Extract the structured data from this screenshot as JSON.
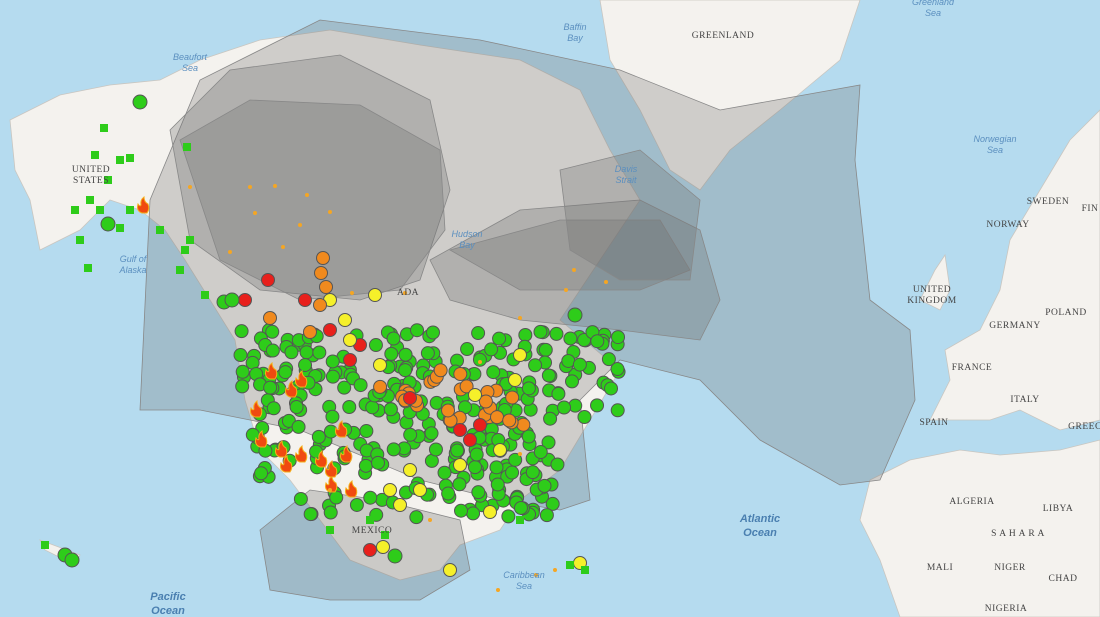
{
  "map": {
    "labels": [
      {
        "kind": "water",
        "lines": [
          "Baffin",
          "Bay"
        ]
      },
      {
        "kind": "land",
        "lines": [
          "GREENLAND"
        ]
      },
      {
        "kind": "water",
        "lines": [
          "Greenland",
          "Sea"
        ]
      },
      {
        "kind": "water",
        "lines": [
          "Beaufort",
          "Sea"
        ]
      },
      {
        "kind": "land",
        "lines": [
          "UNITED",
          "STATES"
        ]
      },
      {
        "kind": "water",
        "lines": [
          "Gulf of",
          "Alaska"
        ]
      },
      {
        "kind": "water",
        "lines": [
          "Hudson",
          "Bay"
        ]
      },
      {
        "kind": "water",
        "lines": [
          "Davis",
          "Strait"
        ]
      },
      {
        "kind": "water",
        "lines": [
          "Norwegian",
          "Sea"
        ]
      },
      {
        "kind": "land",
        "lines": [
          "SWEDEN"
        ]
      },
      {
        "kind": "land",
        "lines": [
          "FIN"
        ]
      },
      {
        "kind": "land",
        "lines": [
          "NORWAY"
        ]
      },
      {
        "kind": "land",
        "lines": [
          "UNITED",
          "KINGDOM"
        ]
      },
      {
        "kind": "land",
        "lines": [
          "GERMANY"
        ]
      },
      {
        "kind": "land",
        "lines": [
          "POLAND"
        ]
      },
      {
        "kind": "land",
        "lines": [
          "FRANCE"
        ]
      },
      {
        "kind": "land",
        "lines": [
          "ITALY"
        ]
      },
      {
        "kind": "land",
        "lines": [
          "SPAIN"
        ]
      },
      {
        "kind": "land",
        "lines": [
          "GREEC"
        ]
      },
      {
        "kind": "land",
        "lines": [
          "ALGERIA"
        ]
      },
      {
        "kind": "land",
        "lines": [
          "LIBYA"
        ]
      },
      {
        "kind": "land",
        "lines": [
          "S A H A R A"
        ]
      },
      {
        "kind": "land",
        "lines": [
          "MALI"
        ]
      },
      {
        "kind": "land",
        "lines": [
          "NIGER"
        ]
      },
      {
        "kind": "land",
        "lines": [
          "CHAD"
        ]
      },
      {
        "kind": "land",
        "lines": [
          "NIGERIA"
        ]
      },
      {
        "kind": "ocean",
        "lines": [
          "Atlantic",
          "Ocean"
        ]
      },
      {
        "kind": "ocean",
        "lines": [
          "Pacific",
          "Ocean"
        ]
      },
      {
        "kind": "water",
        "lines": [
          "Caribbean",
          "Sea"
        ]
      },
      {
        "kind": "land",
        "lines": [
          "MEXICO"
        ]
      },
      {
        "kind": "land",
        "lines": [
          "ADA"
        ]
      }
    ]
  }
}
